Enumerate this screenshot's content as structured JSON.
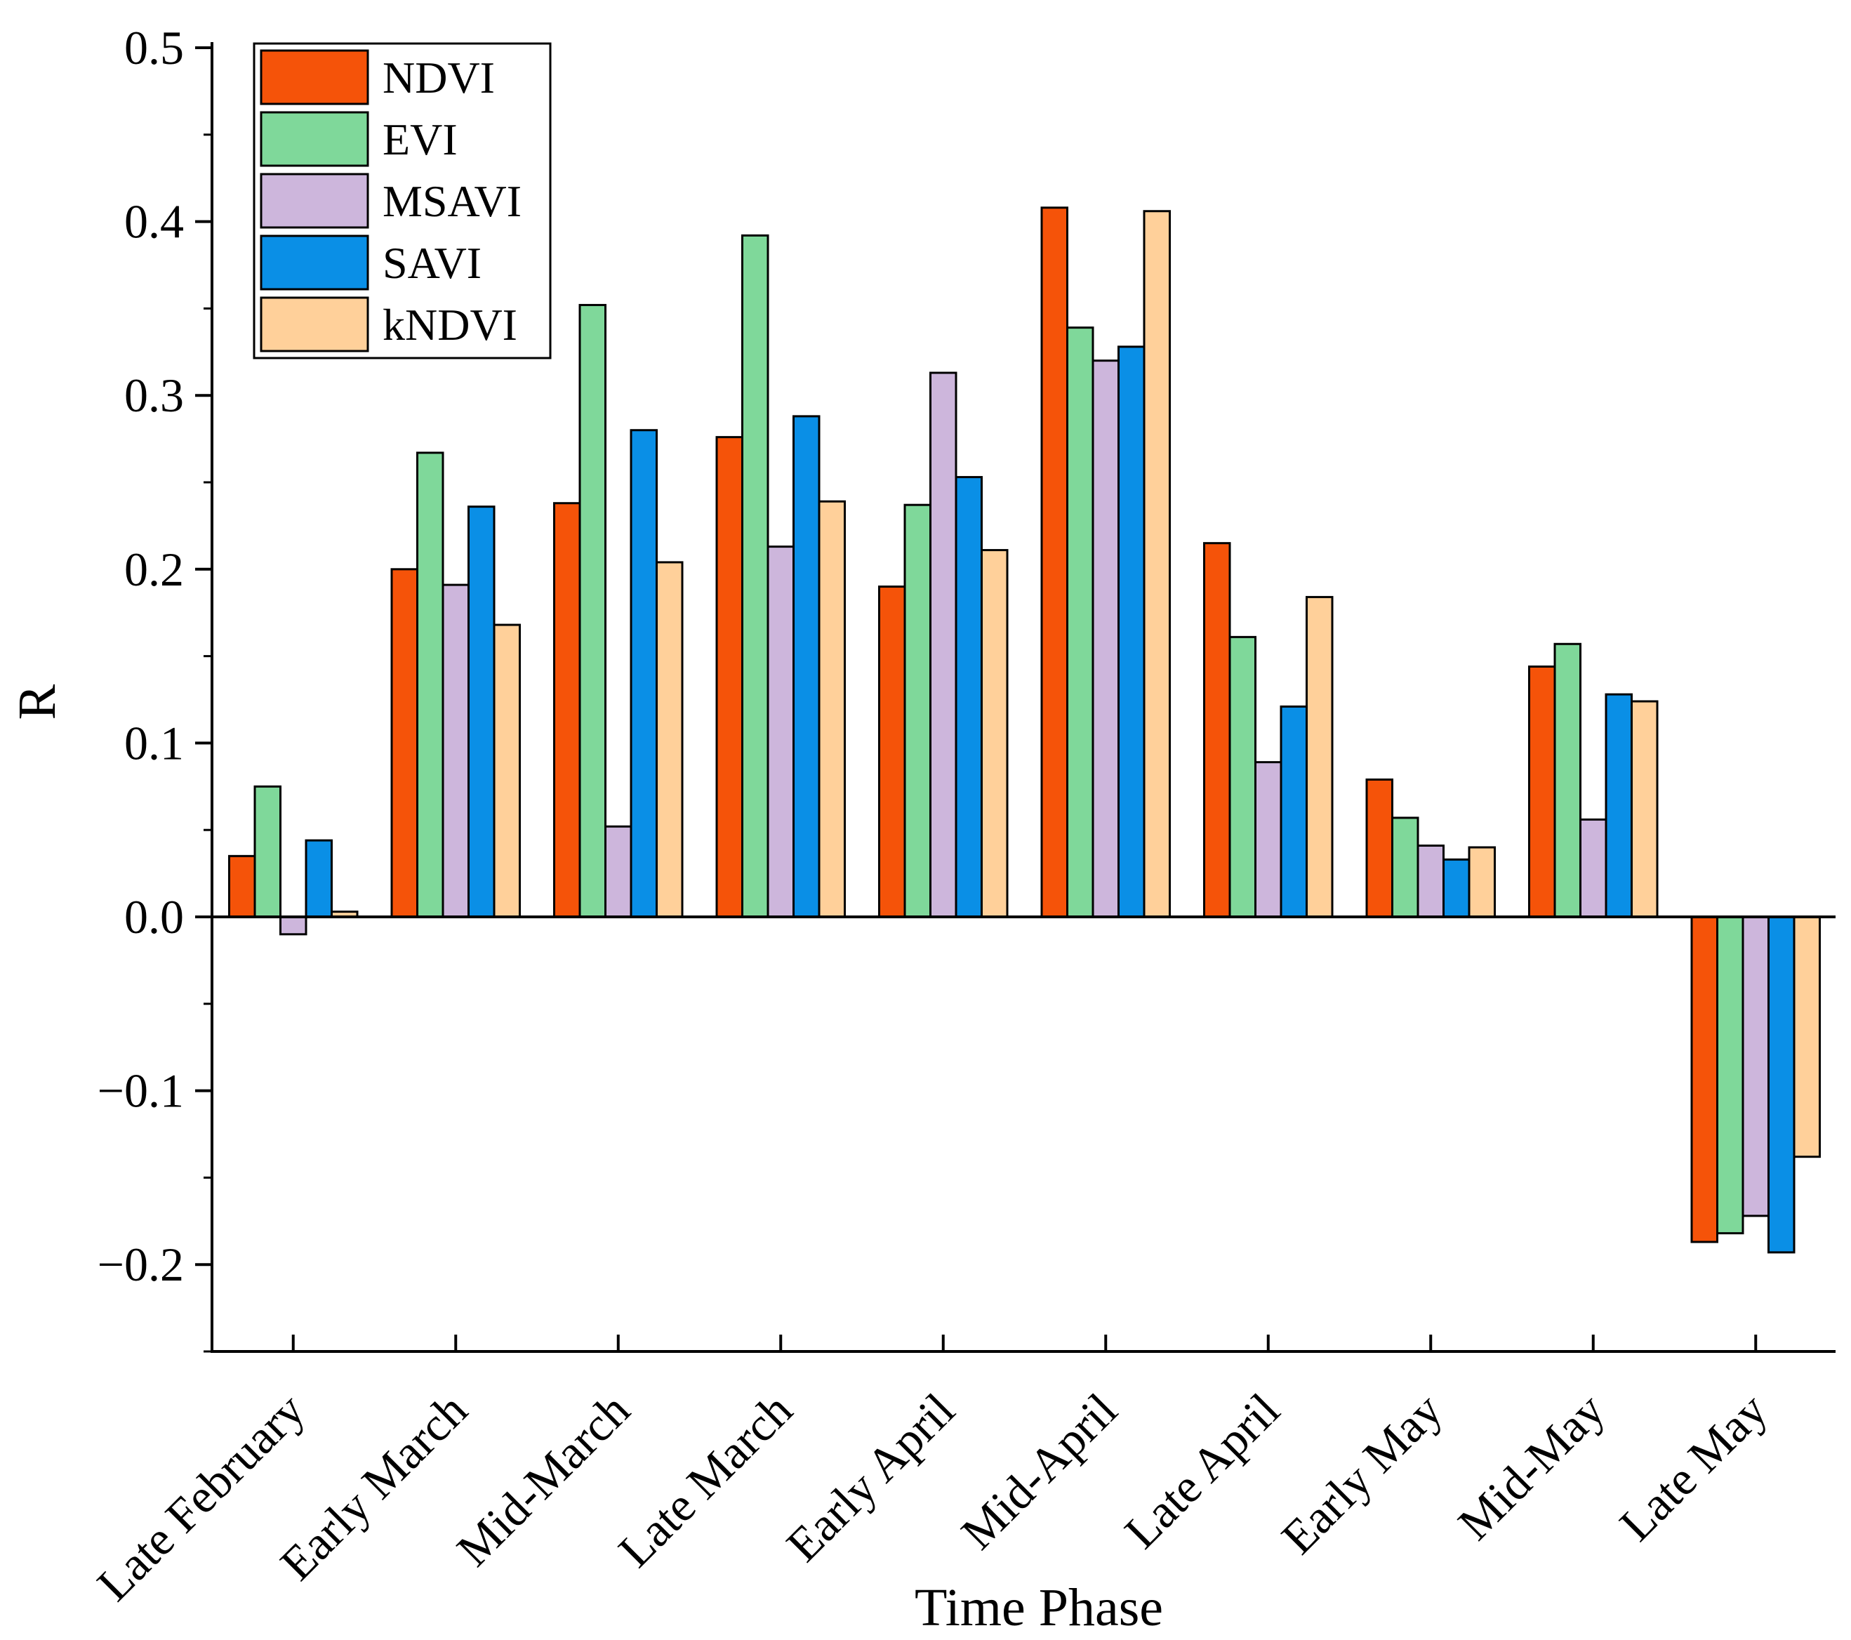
{
  "chart_data": {
    "type": "bar",
    "title": "",
    "xlabel": "Time Phase",
    "ylabel": "R",
    "ylim": [
      -0.25,
      0.5
    ],
    "yticks": [
      -0.2,
      -0.1,
      0.0,
      0.1,
      0.2,
      0.3,
      0.4,
      0.5
    ],
    "ytick_labels": [
      "−0.2",
      "−0.1",
      "0.0",
      "0.1",
      "0.2",
      "0.3",
      "0.4",
      "0.5"
    ],
    "categories": [
      "Late February",
      "Early March",
      "Mid-March",
      "Late March",
      "Early April",
      "Mid-April",
      "Late April",
      "Early May",
      "Mid-May",
      "Late May"
    ],
    "legend_position": "top-left",
    "grid": false,
    "series": [
      {
        "name": "NDVI",
        "color": "#F55309",
        "values": [
          0.035,
          0.2,
          0.238,
          0.276,
          0.19,
          0.408,
          0.215,
          0.079,
          0.144,
          -0.187
        ]
      },
      {
        "name": "EVI",
        "color": "#7FD89A",
        "values": [
          0.075,
          0.267,
          0.352,
          0.392,
          0.237,
          0.339,
          0.161,
          0.057,
          0.157,
          -0.182
        ]
      },
      {
        "name": "MSAVI",
        "color": "#CDB6DC",
        "values": [
          -0.01,
          0.191,
          0.052,
          0.213,
          0.313,
          0.32,
          0.089,
          0.041,
          0.056,
          -0.172
        ]
      },
      {
        "name": "SAVI",
        "color": "#0A8FE6",
        "values": [
          0.044,
          0.236,
          0.28,
          0.288,
          0.253,
          0.328,
          0.121,
          0.033,
          0.128,
          -0.193
        ]
      },
      {
        "name": "kNDVI",
        "color": "#FFD09A",
        "values": [
          0.003,
          0.168,
          0.204,
          0.239,
          0.211,
          0.406,
          0.184,
          0.04,
          0.124,
          -0.138
        ]
      }
    ]
  }
}
